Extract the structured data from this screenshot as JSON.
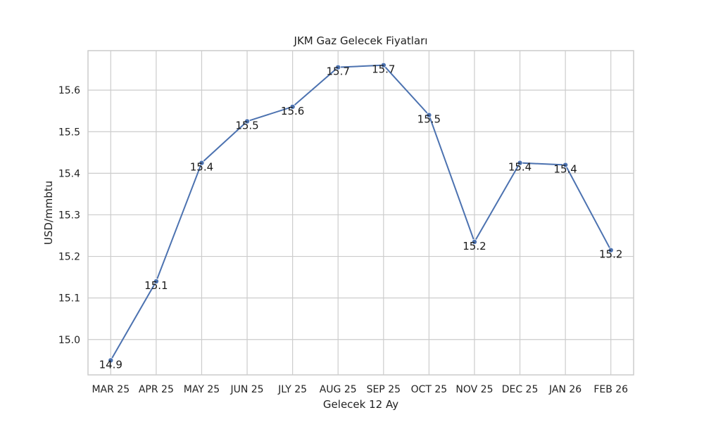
{
  "chart_data": {
    "type": "line",
    "title": "JKM Gaz Gelecek Fiyatları",
    "xlabel": "Gelecek 12 Ay",
    "ylabel": "USD/mmbtu",
    "categories": [
      "MAR 25",
      "APR 25",
      "MAY 25",
      "JUN 25",
      "JLY 25",
      "AUG 25",
      "SEP 25",
      "OCT 25",
      "NOV 25",
      "DEC 25",
      "JAN 26",
      "FEB 26"
    ],
    "series": [
      {
        "values": [
          14.95,
          15.14,
          15.425,
          15.525,
          15.56,
          15.655,
          15.66,
          15.54,
          15.235,
          15.425,
          15.42,
          15.215
        ],
        "data_labels": [
          "14.9",
          "15.1",
          "15.4",
          "15.5",
          "15.6",
          "15.7",
          "15.7",
          "15.5",
          "15.2",
          "15.4",
          "15.4",
          "15.2"
        ],
        "color": "#4c72b0"
      }
    ],
    "ylim": [
      14.915,
      15.695
    ],
    "yticks": [
      15.0,
      15.1,
      15.2,
      15.3,
      15.4,
      15.5,
      15.6
    ],
    "ytick_labels": [
      "15.0",
      "15.1",
      "15.2",
      "15.3",
      "15.4",
      "15.5",
      "15.6"
    ],
    "grid": true,
    "colors": {
      "grid": "#cccccc",
      "frame": "#cccccc",
      "text": "#222222"
    }
  }
}
